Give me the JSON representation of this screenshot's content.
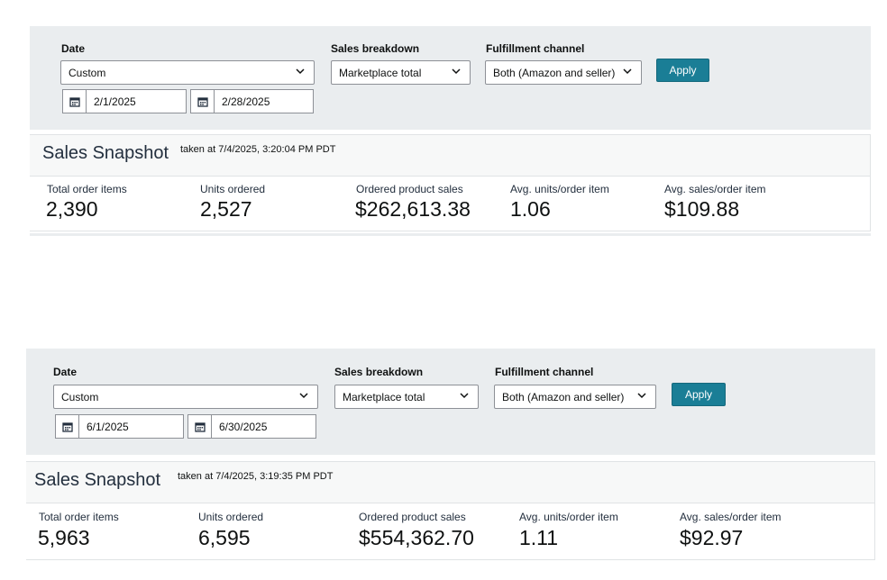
{
  "panels": [
    {
      "filters": {
        "date_label": "Date",
        "date_range": "Custom",
        "start_date": "2/1/2025",
        "end_date": "2/28/2025",
        "breakdown_label": "Sales breakdown",
        "breakdown_value": "Marketplace total",
        "channel_label": "Fulfillment channel",
        "channel_value": "Both (Amazon and seller)",
        "apply_label": "Apply"
      },
      "snapshot": {
        "title": "Sales Snapshot",
        "taken": "taken at 7/4/2025, 3:20:04 PM PDT",
        "metrics": [
          {
            "label": "Total order items",
            "value": "2,390"
          },
          {
            "label": "Units ordered",
            "value": "2,527"
          },
          {
            "label": "Ordered product sales",
            "value": "$262,613.38"
          },
          {
            "label": "Avg. units/order item",
            "value": "1.06"
          },
          {
            "label": "Avg. sales/order item",
            "value": "$109.88"
          }
        ]
      }
    },
    {
      "filters": {
        "date_label": "Date",
        "date_range": "Custom",
        "start_date": "6/1/2025",
        "end_date": "6/30/2025",
        "breakdown_label": "Sales breakdown",
        "breakdown_value": "Marketplace total",
        "channel_label": "Fulfillment channel",
        "channel_value": "Both (Amazon and seller)",
        "apply_label": "Apply"
      },
      "snapshot": {
        "title": "Sales Snapshot",
        "taken": "taken at 7/4/2025, 3:19:35 PM PDT",
        "metrics": [
          {
            "label": "Total order items",
            "value": "5,963"
          },
          {
            "label": "Units ordered",
            "value": "6,595"
          },
          {
            "label": "Ordered product sales",
            "value": "$554,362.70"
          },
          {
            "label": "Avg. units/order item",
            "value": "1.11"
          },
          {
            "label": "Avg. sales/order item",
            "value": "$92.97"
          }
        ]
      }
    }
  ],
  "icons": {
    "calendar": "calendar-icon",
    "dropdown": "chevron-down-icon"
  },
  "colors": {
    "panel_bg": "#eaedef",
    "apply_button": "#1a7e96",
    "header_bg": "#f7f8f8"
  }
}
